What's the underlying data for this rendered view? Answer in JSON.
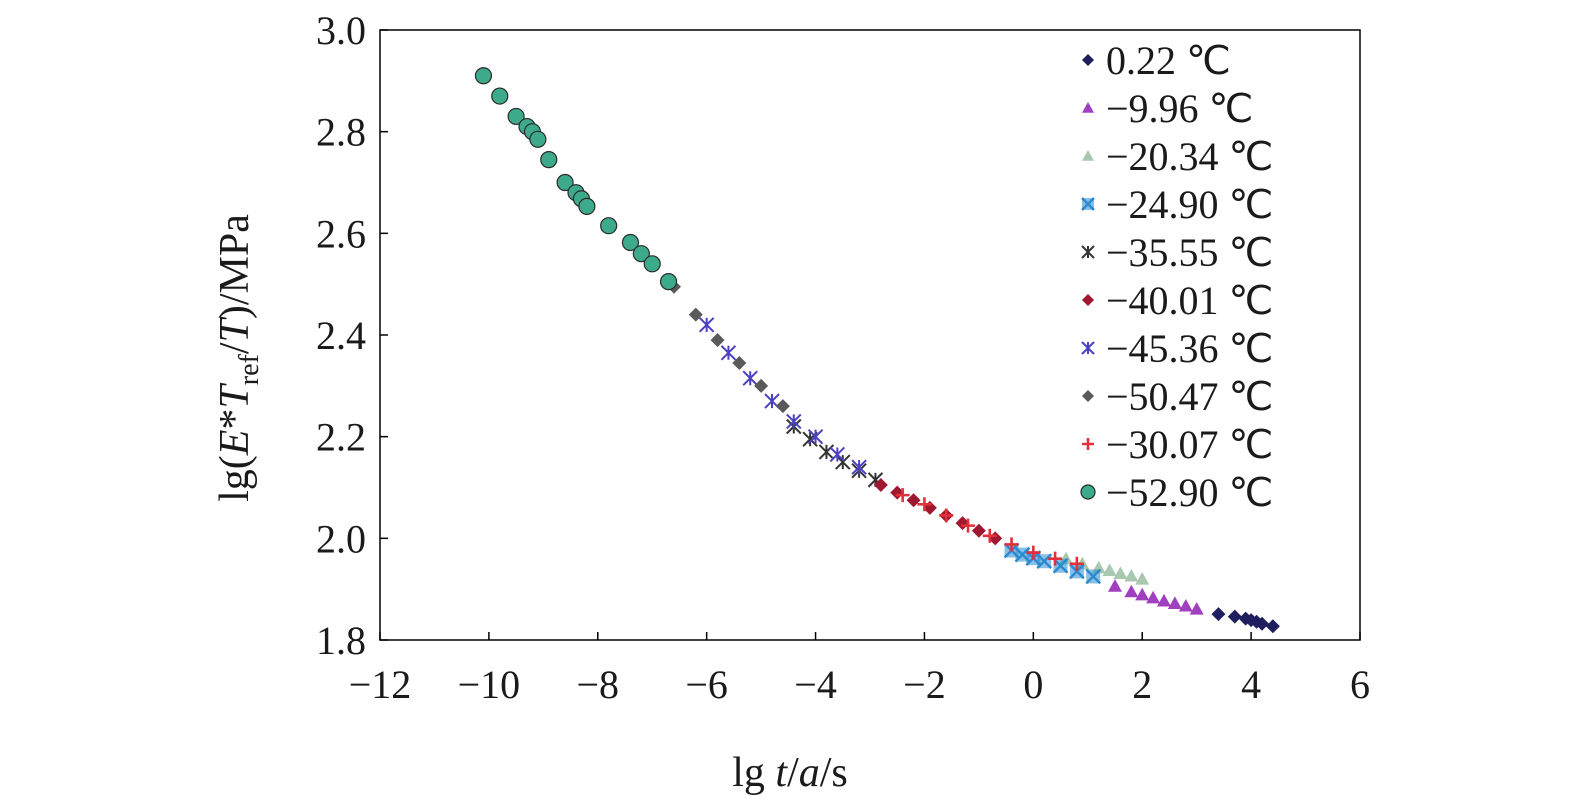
{
  "chart_data": {
    "type": "scatter",
    "xlabel": {
      "prefix": "lg ",
      "t": "t",
      "slash1": "/",
      "a": "a",
      "suffix": "/s"
    },
    "ylabel": {
      "prefix": "lg(",
      "E": "E",
      "star": "*",
      "T1": "T",
      "sub": "ref",
      "slash": "/",
      "T2": "T",
      "suffix": ")/MPa"
    },
    "xlim": [
      -12,
      6
    ],
    "ylim": [
      1.8,
      3.0
    ],
    "xticks": [
      "−12",
      "−10",
      "−8",
      "−6",
      "−4",
      "−2",
      "0",
      "2",
      "4",
      "6"
    ],
    "yticks": [
      "1.8",
      "2.0",
      "2.2",
      "2.4",
      "2.6",
      "2.8",
      "3.0"
    ],
    "legend_position": "top-right",
    "grid": false,
    "series": [
      {
        "name": "0.22 ℃",
        "marker": "diamond",
        "color": "#1f1f5f",
        "x": [
          3.4,
          3.7,
          3.9,
          4.0,
          4.1,
          4.2,
          4.4
        ],
        "y": [
          1.851,
          1.846,
          1.842,
          1.839,
          1.836,
          1.832,
          1.827
        ]
      },
      {
        "name": "−9.96 ℃",
        "marker": "triangle",
        "color": "#a040c0",
        "x": [
          1.5,
          1.8,
          2.0,
          2.2,
          2.4,
          2.6,
          2.8,
          3.0
        ],
        "y": [
          1.906,
          1.895,
          1.889,
          1.883,
          1.877,
          1.872,
          1.867,
          1.861
        ]
      },
      {
        "name": "−20.34 ℃",
        "marker": "triangle",
        "color": "#a8c8b0",
        "x": [
          0.6,
          0.9,
          1.2,
          1.4,
          1.6,
          1.8,
          2.0
        ],
        "y": [
          1.96,
          1.95,
          1.942,
          1.937,
          1.931,
          1.926,
          1.92
        ]
      },
      {
        "name": "−24.90 ℃",
        "marker": "x-square",
        "color": "#2a8ad0",
        "x": [
          -0.4,
          -0.2,
          0.0,
          0.2,
          0.5,
          0.8,
          1.1
        ],
        "y": [
          1.976,
          1.968,
          1.961,
          1.955,
          1.946,
          1.935,
          1.925
        ]
      },
      {
        "name": "−35.55 ℃",
        "marker": "asterisk",
        "color": "#333333",
        "x": [
          -4.4,
          -4.1,
          -3.8,
          -3.5,
          -3.2,
          -2.9
        ],
        "y": [
          2.22,
          2.195,
          2.17,
          2.15,
          2.133,
          2.115
        ]
      },
      {
        "name": "−40.01 ℃",
        "marker": "diamond",
        "color": "#a01830",
        "x": [
          -2.8,
          -2.5,
          -2.2,
          -1.9,
          -1.6,
          -1.3,
          -1.0,
          -0.7
        ],
        "y": [
          2.105,
          2.09,
          2.075,
          2.06,
          2.045,
          2.03,
          2.015,
          2.0
        ]
      },
      {
        "name": "−45.36 ℃",
        "marker": "asterisk",
        "color": "#4a40c0",
        "x": [
          -6.0,
          -5.6,
          -5.2,
          -4.8,
          -4.4,
          -4.0,
          -3.6,
          -3.2
        ],
        "y": [
          2.42,
          2.365,
          2.315,
          2.27,
          2.23,
          2.2,
          2.165,
          2.14
        ]
      },
      {
        "name": "−50.47 ℃",
        "marker": "diamond",
        "color": "#5a5a5a",
        "x": [
          -6.6,
          -6.2,
          -5.8,
          -5.4,
          -5.0,
          -4.6
        ],
        "y": [
          2.495,
          2.44,
          2.39,
          2.345,
          2.3,
          2.26
        ]
      },
      {
        "name": "−30.07 ℃",
        "marker": "plus",
        "color": "#e0303a",
        "x": [
          -2.4,
          -2.0,
          -1.6,
          -1.2,
          -0.8,
          -0.4,
          0.0,
          0.4,
          0.8
        ],
        "y": [
          2.085,
          2.067,
          2.045,
          2.025,
          2.005,
          1.988,
          1.972,
          1.96,
          1.95
        ]
      },
      {
        "name": "−52.90 ℃",
        "marker": "circle",
        "color": "#3eaa8c",
        "x": [
          -10.1,
          -9.8,
          -9.5,
          -9.3,
          -9.2,
          -9.1,
          -8.9,
          -8.6,
          -8.4,
          -8.3,
          -8.2,
          -7.8,
          -7.4,
          -7.2,
          -7.0,
          -6.7
        ],
        "y": [
          2.91,
          2.87,
          2.83,
          2.81,
          2.8,
          2.785,
          2.745,
          2.7,
          2.68,
          2.668,
          2.653,
          2.615,
          2.582,
          2.56,
          2.54,
          2.505
        ]
      }
    ]
  }
}
